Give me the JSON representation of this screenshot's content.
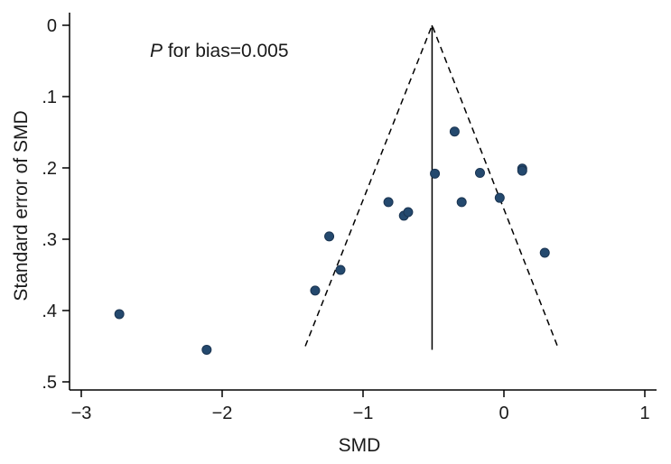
{
  "chart_data": {
    "type": "scatter",
    "title": "",
    "xlabel": "SMD",
    "ylabel": "Standard error of SMD",
    "xlim": [
      -3,
      1
    ],
    "ylim": [
      0.5,
      0
    ],
    "y_axis_inverted": true,
    "grid": false,
    "x_ticks": [
      -3,
      -2,
      -1,
      0,
      1
    ],
    "x_tick_labels": [
      "−3",
      "−2",
      "−1",
      "0",
      "1"
    ],
    "y_ticks": [
      0,
      0.1,
      0.2,
      0.3,
      0.4,
      0.5
    ],
    "y_tick_labels": [
      "0",
      ".1",
      ".2",
      ".3",
      ".4",
      ".5"
    ],
    "annotation": {
      "italic_part": "P",
      "rest": " for bias=0.005"
    },
    "pooled_estimate": -0.51,
    "funnel": {
      "apex": [
        -0.51,
        0
      ],
      "bottom_left": [
        -1.41,
        0.45
      ],
      "bottom_right": [
        0.38,
        0.45
      ],
      "line_style": "dashed"
    },
    "vertical_line": {
      "x": -0.51,
      "y_from": 0,
      "y_to": 0.455
    },
    "marker_color": "#24496e",
    "points": [
      {
        "x": -2.73,
        "y": 0.405
      },
      {
        "x": -2.11,
        "y": 0.455
      },
      {
        "x": -1.34,
        "y": 0.372
      },
      {
        "x": -1.24,
        "y": 0.296
      },
      {
        "x": -1.16,
        "y": 0.343
      },
      {
        "x": -0.82,
        "y": 0.248
      },
      {
        "x": -0.71,
        "y": 0.267
      },
      {
        "x": -0.68,
        "y": 0.262
      },
      {
        "x": -0.49,
        "y": 0.208
      },
      {
        "x": -0.35,
        "y": 0.149
      },
      {
        "x": -0.3,
        "y": 0.248
      },
      {
        "x": -0.17,
        "y": 0.207
      },
      {
        "x": -0.03,
        "y": 0.242
      },
      {
        "x": 0.13,
        "y": 0.201
      },
      {
        "x": 0.13,
        "y": 0.204
      },
      {
        "x": 0.29,
        "y": 0.319
      }
    ]
  }
}
